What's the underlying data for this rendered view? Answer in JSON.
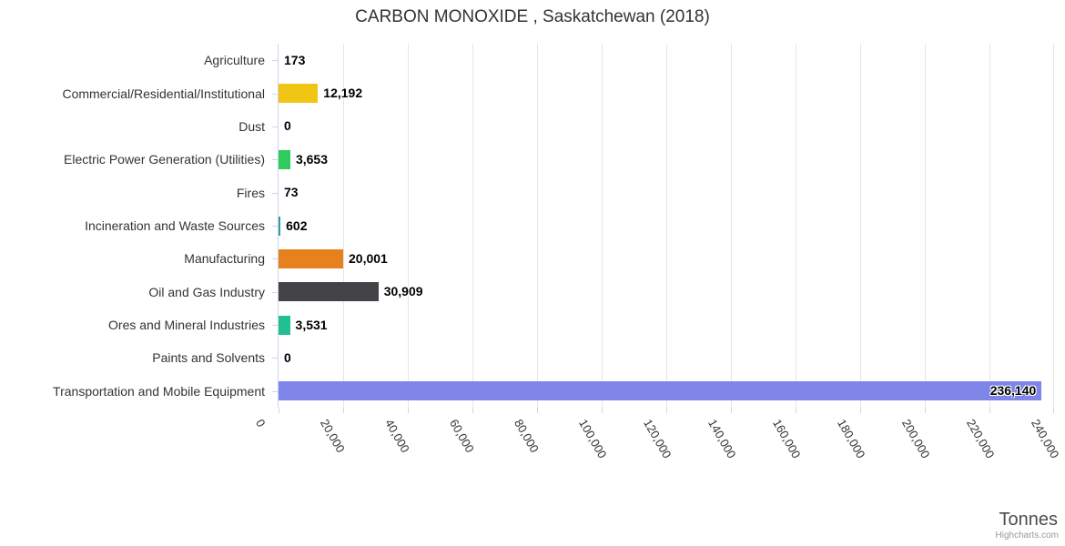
{
  "title": "CARBON MONOXIDE , Saskatchewan (2018)",
  "credits": "Highcharts.com",
  "chart_data": {
    "type": "bar",
    "orientation": "horizontal",
    "title": "CARBON MONOXIDE , Saskatchewan (2018)",
    "xlabel": "Tonnes",
    "ylabel": "",
    "grid": true,
    "legend": false,
    "categories": [
      "Agriculture",
      "Commercial/Residential/Institutional",
      "Dust",
      "Electric Power Generation (Utilities)",
      "Fires",
      "Incineration and Waste Sources",
      "Manufacturing",
      "Oil and Gas Industry",
      "Ores and Mineral Industries",
      "Paints and Solvents",
      "Transportation and Mobile Equipment"
    ],
    "values": [
      173,
      12192,
      0,
      3653,
      73,
      602,
      20001,
      30909,
      3531,
      0,
      236140
    ],
    "value_labels": [
      "173",
      "12,192",
      "0",
      "3,653",
      "73",
      "602",
      "20,001",
      "30,909",
      "3,531",
      "0",
      "236,140"
    ],
    "bar_colors": [
      null,
      "#f0c514",
      null,
      "#2ecc5c",
      null,
      "#2f9e9e",
      "#e7811e",
      "#424247",
      "#22bf92",
      null,
      "#8085e9"
    ],
    "value_axis": {
      "label": "Tonnes",
      "min": 0,
      "max": 240000,
      "tick_interval": 20000,
      "tick_labels": [
        "0",
        "20,000",
        "40,000",
        "60,000",
        "80,000",
        "100,000",
        "120,000",
        "140,000",
        "160,000",
        "180,000",
        "200,000",
        "220,000",
        "240,000"
      ]
    }
  }
}
